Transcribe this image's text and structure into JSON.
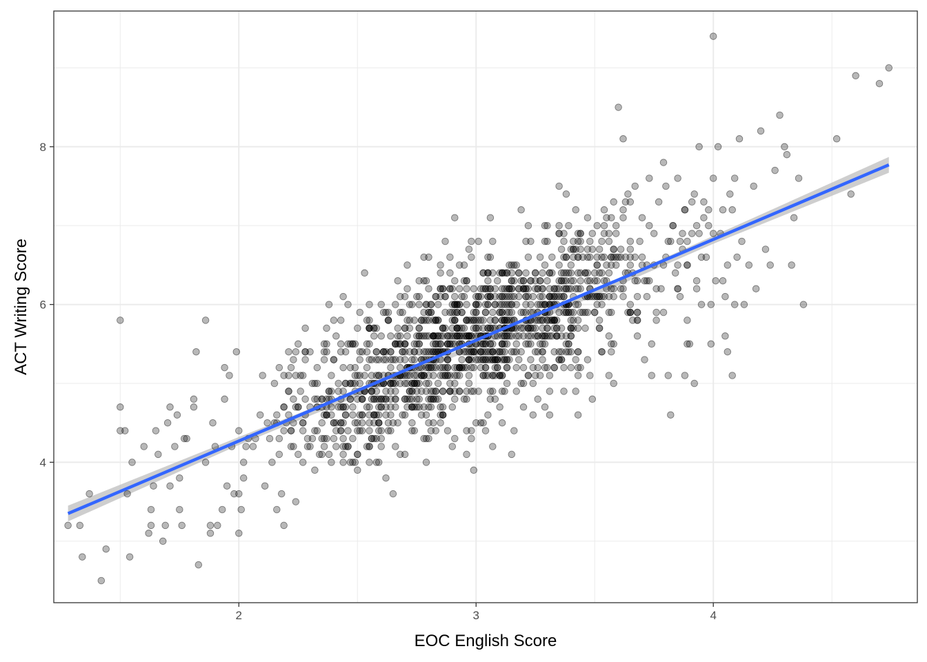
{
  "chart_data": {
    "type": "scatter",
    "xlabel": "EOC English Score",
    "ylabel": "ACT Writing Score",
    "xlim": [
      1.22,
      4.86
    ],
    "ylim": [
      2.22,
      9.72
    ],
    "x_ticks": [
      2,
      3,
      4
    ],
    "y_ticks": [
      4,
      6,
      8
    ],
    "x_tick_labels": [
      "2",
      "3",
      "4"
    ],
    "y_tick_labels": [
      "4",
      "6",
      "8"
    ],
    "x_minor": [
      1.5,
      2.5,
      3.5,
      4.5
    ],
    "y_minor": [
      3,
      5,
      7,
      9
    ],
    "grid": true,
    "legend": "none",
    "colors": {
      "point": "#000000",
      "point_opacity": 0.28,
      "fit_line": "#3366FF",
      "confidence_band": "#bdbdbd",
      "grid": "#ebebeb",
      "panel_border": "#333333"
    },
    "points": [
      [
        1.28,
        3.2
      ],
      [
        1.33,
        3.2
      ],
      [
        1.34,
        2.8
      ],
      [
        1.37,
        3.6
      ],
      [
        1.42,
        2.5
      ],
      [
        1.44,
        2.9
      ],
      [
        1.5,
        5.8
      ],
      [
        1.5,
        4.7
      ],
      [
        1.5,
        4.4
      ],
      [
        1.52,
        4.4
      ],
      [
        1.53,
        3.6
      ],
      [
        1.54,
        2.8
      ],
      [
        1.55,
        4.0
      ],
      [
        1.6,
        4.2
      ],
      [
        1.62,
        3.1
      ],
      [
        1.63,
        3.2
      ],
      [
        1.63,
        3.4
      ],
      [
        1.64,
        3.7
      ],
      [
        1.65,
        4.4
      ],
      [
        1.66,
        4.1
      ],
      [
        1.68,
        3.0
      ],
      [
        1.69,
        3.2
      ],
      [
        1.7,
        4.5
      ],
      [
        1.71,
        3.7
      ],
      [
        1.71,
        4.7
      ],
      [
        1.73,
        4.2
      ],
      [
        1.74,
        4.6
      ],
      [
        1.75,
        3.4
      ],
      [
        1.75,
        3.8
      ],
      [
        1.76,
        3.2
      ],
      [
        1.77,
        4.3
      ],
      [
        1.78,
        4.3
      ],
      [
        1.81,
        4.8
      ],
      [
        1.81,
        4.7
      ],
      [
        1.82,
        5.4
      ],
      [
        1.83,
        2.7
      ],
      [
        1.86,
        4.0
      ],
      [
        1.88,
        3.1
      ],
      [
        1.88,
        3.2
      ],
      [
        1.89,
        4.5
      ],
      [
        1.9,
        4.2
      ],
      [
        1.91,
        3.2
      ],
      [
        1.86,
        5.8
      ],
      [
        1.93,
        3.4
      ],
      [
        1.94,
        5.2
      ],
      [
        1.94,
        4.8
      ],
      [
        1.95,
        3.7
      ],
      [
        1.96,
        5.1
      ],
      [
        1.97,
        4.2
      ],
      [
        1.98,
        3.6
      ],
      [
        1.99,
        5.4
      ],
      [
        2.0,
        3.6
      ],
      [
        2.0,
        4.4
      ],
      [
        2.01,
        3.4
      ],
      [
        2.02,
        4.0
      ],
      [
        2.02,
        3.8
      ],
      [
        2.03,
        4.2
      ],
      [
        2.04,
        4.3
      ],
      [
        2.0,
        3.1
      ],
      [
        2.06,
        4.2
      ],
      [
        2.07,
        4.3
      ],
      [
        2.09,
        4.6
      ],
      [
        2.1,
        5.1
      ],
      [
        2.11,
        3.7
      ],
      [
        2.12,
        4.5
      ],
      [
        2.13,
        4.3
      ],
      [
        2.14,
        4.0
      ],
      [
        2.15,
        4.5
      ],
      [
        2.16,
        3.4
      ],
      [
        2.17,
        4.1
      ],
      [
        2.18,
        3.6
      ],
      [
        2.19,
        3.2
      ],
      [
        2.2,
        4.5
      ],
      [
        2.21,
        4.9
      ],
      [
        2.21,
        5.4
      ],
      [
        2.22,
        4.4
      ],
      [
        2.23,
        4.2
      ],
      [
        2.24,
        3.5
      ],
      [
        2.25,
        4.7
      ],
      [
        2.26,
        5.1
      ],
      [
        2.27,
        4.0
      ],
      [
        2.28,
        4.6
      ],
      [
        2.29,
        4.3
      ],
      [
        2.3,
        4.7
      ],
      [
        2.31,
        5.0
      ],
      [
        2.32,
        3.9
      ],
      [
        2.33,
        4.4
      ],
      [
        2.34,
        4.1
      ],
      [
        2.36,
        5.3
      ],
      [
        2.37,
        4.6
      ],
      [
        2.38,
        4.8
      ],
      [
        2.39,
        5.1
      ],
      [
        2.4,
        4.3
      ],
      [
        2.41,
        5.6
      ],
      [
        2.42,
        4.9
      ],
      [
        2.43,
        4.5
      ],
      [
        2.44,
        5.2
      ],
      [
        2.45,
        4.7
      ],
      [
        2.46,
        4.4
      ],
      [
        2.47,
        5.5
      ],
      [
        2.48,
        4.0
      ],
      [
        2.49,
        5.0
      ],
      [
        2.5,
        3.9
      ],
      [
        2.51,
        5.9
      ],
      [
        2.52,
        4.8
      ],
      [
        2.53,
        6.4
      ],
      [
        2.38,
        6.0
      ],
      [
        2.4,
        5.8
      ],
      [
        2.55,
        5.3
      ],
      [
        2.56,
        5.0
      ],
      [
        2.57,
        4.6
      ],
      [
        2.58,
        5.7
      ],
      [
        2.59,
        4.5
      ],
      [
        2.6,
        6.0
      ],
      [
        2.61,
        5.4
      ],
      [
        2.62,
        3.8
      ],
      [
        2.63,
        5.1
      ],
      [
        2.64,
        4.9
      ],
      [
        2.65,
        3.6
      ],
      [
        2.66,
        4.2
      ],
      [
        2.67,
        5.6
      ],
      [
        2.68,
        5.9
      ],
      [
        2.69,
        4.6
      ],
      [
        2.7,
        5.5
      ],
      [
        2.71,
        6.2
      ],
      [
        2.72,
        4.8
      ],
      [
        2.73,
        5.2
      ],
      [
        2.74,
        4.4
      ],
      [
        2.75,
        5.0
      ],
      [
        2.76,
        6.0
      ],
      [
        2.77,
        5.8
      ],
      [
        2.78,
        4.3
      ],
      [
        2.79,
        5.4
      ],
      [
        2.8,
        6.6
      ],
      [
        2.81,
        4.7
      ],
      [
        2.82,
        5.3
      ],
      [
        2.83,
        6.1
      ],
      [
        2.84,
        5.0
      ],
      [
        2.85,
        4.5
      ],
      [
        2.86,
        5.7
      ],
      [
        2.87,
        6.8
      ],
      [
        2.88,
        5.5
      ],
      [
        2.89,
        6.6
      ],
      [
        2.9,
        4.2
      ],
      [
        2.91,
        7.1
      ],
      [
        2.92,
        5.2
      ],
      [
        2.93,
        4.9
      ],
      [
        2.94,
        5.9
      ],
      [
        2.95,
        6.3
      ],
      [
        2.96,
        4.1
      ],
      [
        2.97,
        5.6
      ],
      [
        2.98,
        6.6
      ],
      [
        2.99,
        3.9
      ],
      [
        3.0,
        5.4
      ],
      [
        3.01,
        5.8
      ],
      [
        3.02,
        4.5
      ],
      [
        3.03,
        6.2
      ],
      [
        3.04,
        5.1
      ],
      [
        3.05,
        6.6
      ],
      [
        3.06,
        4.8
      ],
      [
        3.07,
        5.5
      ],
      [
        3.08,
        6.0
      ],
      [
        3.09,
        5.3
      ],
      [
        3.1,
        5.7
      ],
      [
        3.11,
        6.4
      ],
      [
        3.12,
        4.9
      ],
      [
        3.13,
        5.2
      ],
      [
        3.14,
        6.1
      ],
      [
        3.15,
        5.9
      ],
      [
        3.16,
        4.4
      ],
      [
        3.17,
        6.5
      ],
      [
        3.18,
        5.6
      ],
      [
        3.19,
        7.2
      ],
      [
        3.2,
        5.0
      ],
      [
        3.21,
        6.2
      ],
      [
        3.22,
        5.8
      ],
      [
        3.23,
        6.8
      ],
      [
        3.24,
        4.6
      ],
      [
        3.25,
        5.4
      ],
      [
        3.26,
        6.0
      ],
      [
        3.27,
        6.3
      ],
      [
        3.28,
        5.3
      ],
      [
        3.29,
        6.5
      ],
      [
        3.3,
        5.9
      ],
      [
        3.31,
        4.6
      ],
      [
        3.32,
        6.6
      ],
      [
        3.33,
        6.1
      ],
      [
        3.34,
        5.6
      ],
      [
        3.35,
        7.5
      ],
      [
        3.36,
        6.3
      ],
      [
        3.37,
        5.2
      ],
      [
        3.38,
        6.0
      ],
      [
        3.39,
        7.0
      ],
      [
        3.4,
        5.7
      ],
      [
        3.41,
        6.6
      ],
      [
        3.42,
        6.2
      ],
      [
        3.43,
        4.6
      ],
      [
        3.44,
        6.9
      ],
      [
        3.45,
        5.9
      ],
      [
        3.46,
        6.4
      ],
      [
        3.47,
        6.7
      ],
      [
        3.48,
        5.1
      ],
      [
        3.49,
        4.8
      ],
      [
        3.5,
        6.3
      ],
      [
        3.51,
        7.0
      ],
      [
        3.52,
        5.8
      ],
      [
        3.53,
        6.6
      ],
      [
        3.54,
        6.1
      ],
      [
        3.55,
        7.1
      ],
      [
        3.56,
        5.6
      ],
      [
        3.57,
        6.5
      ],
      [
        3.58,
        5.0
      ],
      [
        3.59,
        6.9
      ],
      [
        3.6,
        8.5
      ],
      [
        3.61,
        6.2
      ],
      [
        3.62,
        8.1
      ],
      [
        3.63,
        7.3
      ],
      [
        3.64,
        5.9
      ],
      [
        3.65,
        6.7
      ],
      [
        3.66,
        6.4
      ],
      [
        3.67,
        7.5
      ],
      [
        3.68,
        5.6
      ],
      [
        3.69,
        6.8
      ],
      [
        3.7,
        7.1
      ],
      [
        3.71,
        5.3
      ],
      [
        3.72,
        6.5
      ],
      [
        3.73,
        7.6
      ],
      [
        3.74,
        5.5
      ],
      [
        3.75,
        6.9
      ],
      [
        3.76,
        5.9
      ],
      [
        3.77,
        7.3
      ],
      [
        3.78,
        6.2
      ],
      [
        3.79,
        7.8
      ],
      [
        3.8,
        6.6
      ],
      [
        3.81,
        5.1
      ],
      [
        3.82,
        4.6
      ],
      [
        3.83,
        7.0
      ],
      [
        3.84,
        6.4
      ],
      [
        3.85,
        7.6
      ],
      [
        3.86,
        6.1
      ],
      [
        3.87,
        6.7
      ],
      [
        3.88,
        7.2
      ],
      [
        3.89,
        5.8
      ],
      [
        3.9,
        5.5
      ],
      [
        3.91,
        6.9
      ],
      [
        3.92,
        7.4
      ],
      [
        3.93,
        6.3
      ],
      [
        3.94,
        8.0
      ],
      [
        3.95,
        6.0
      ],
      [
        3.96,
        7.3
      ],
      [
        3.97,
        6.6
      ],
      [
        3.98,
        7.0
      ],
      [
        3.99,
        5.5
      ],
      [
        4.0,
        7.6
      ],
      [
        4.01,
        6.3
      ],
      [
        4.02,
        8.0
      ],
      [
        4.0,
        9.4
      ],
      [
        4.03,
        6.9
      ],
      [
        4.04,
        7.2
      ],
      [
        4.05,
        6.1
      ],
      [
        4.06,
        6.5
      ],
      [
        4.07,
        7.4
      ],
      [
        4.08,
        5.1
      ],
      [
        4.09,
        7.6
      ],
      [
        4.1,
        6.6
      ],
      [
        4.11,
        8.1
      ],
      [
        4.12,
        6.8
      ],
      [
        4.13,
        6.0
      ],
      [
        4.15,
        6.5
      ],
      [
        4.17,
        7.5
      ],
      [
        4.18,
        6.2
      ],
      [
        4.2,
        8.2
      ],
      [
        4.22,
        6.7
      ],
      [
        4.24,
        6.5
      ],
      [
        4.26,
        7.7
      ],
      [
        4.28,
        8.4
      ],
      [
        4.3,
        8.0
      ],
      [
        4.31,
        7.9
      ],
      [
        4.33,
        6.5
      ],
      [
        4.34,
        7.1
      ],
      [
        4.36,
        7.6
      ],
      [
        4.38,
        6.0
      ],
      [
        4.52,
        8.1
      ],
      [
        4.58,
        7.4
      ],
      [
        4.6,
        8.9
      ],
      [
        4.7,
        8.8
      ],
      [
        4.74,
        9.0
      ],
      [
        3.85,
        6.5
      ],
      [
        4.05,
        5.6
      ],
      [
        4.06,
        5.4
      ],
      [
        3.92,
        5.0
      ],
      [
        3.88,
        5.1
      ],
      [
        3.74,
        5.1
      ],
      [
        3.58,
        5.5
      ],
      [
        3.99,
        6.0
      ],
      [
        4.08,
        7.2
      ]
    ],
    "cluster": {
      "x_mean": 2.95,
      "x_sd": 0.42,
      "y_noise_sd": 0.48,
      "count": 1350,
      "x_range": [
        2.15,
        4.1
      ],
      "y_range": [
        4.0,
        7.6
      ]
    },
    "fit": {
      "method": "lm",
      "x": [
        1.28,
        4.74
      ],
      "y": [
        3.35,
        7.77
      ],
      "se_band": [
        [
          1.28,
          3.25,
          3.45
        ],
        [
          2.0,
          4.22,
          4.32
        ],
        [
          3.0,
          5.45,
          5.51
        ],
        [
          4.0,
          6.77,
          6.87
        ],
        [
          4.74,
          7.67,
          7.87
        ]
      ]
    }
  }
}
